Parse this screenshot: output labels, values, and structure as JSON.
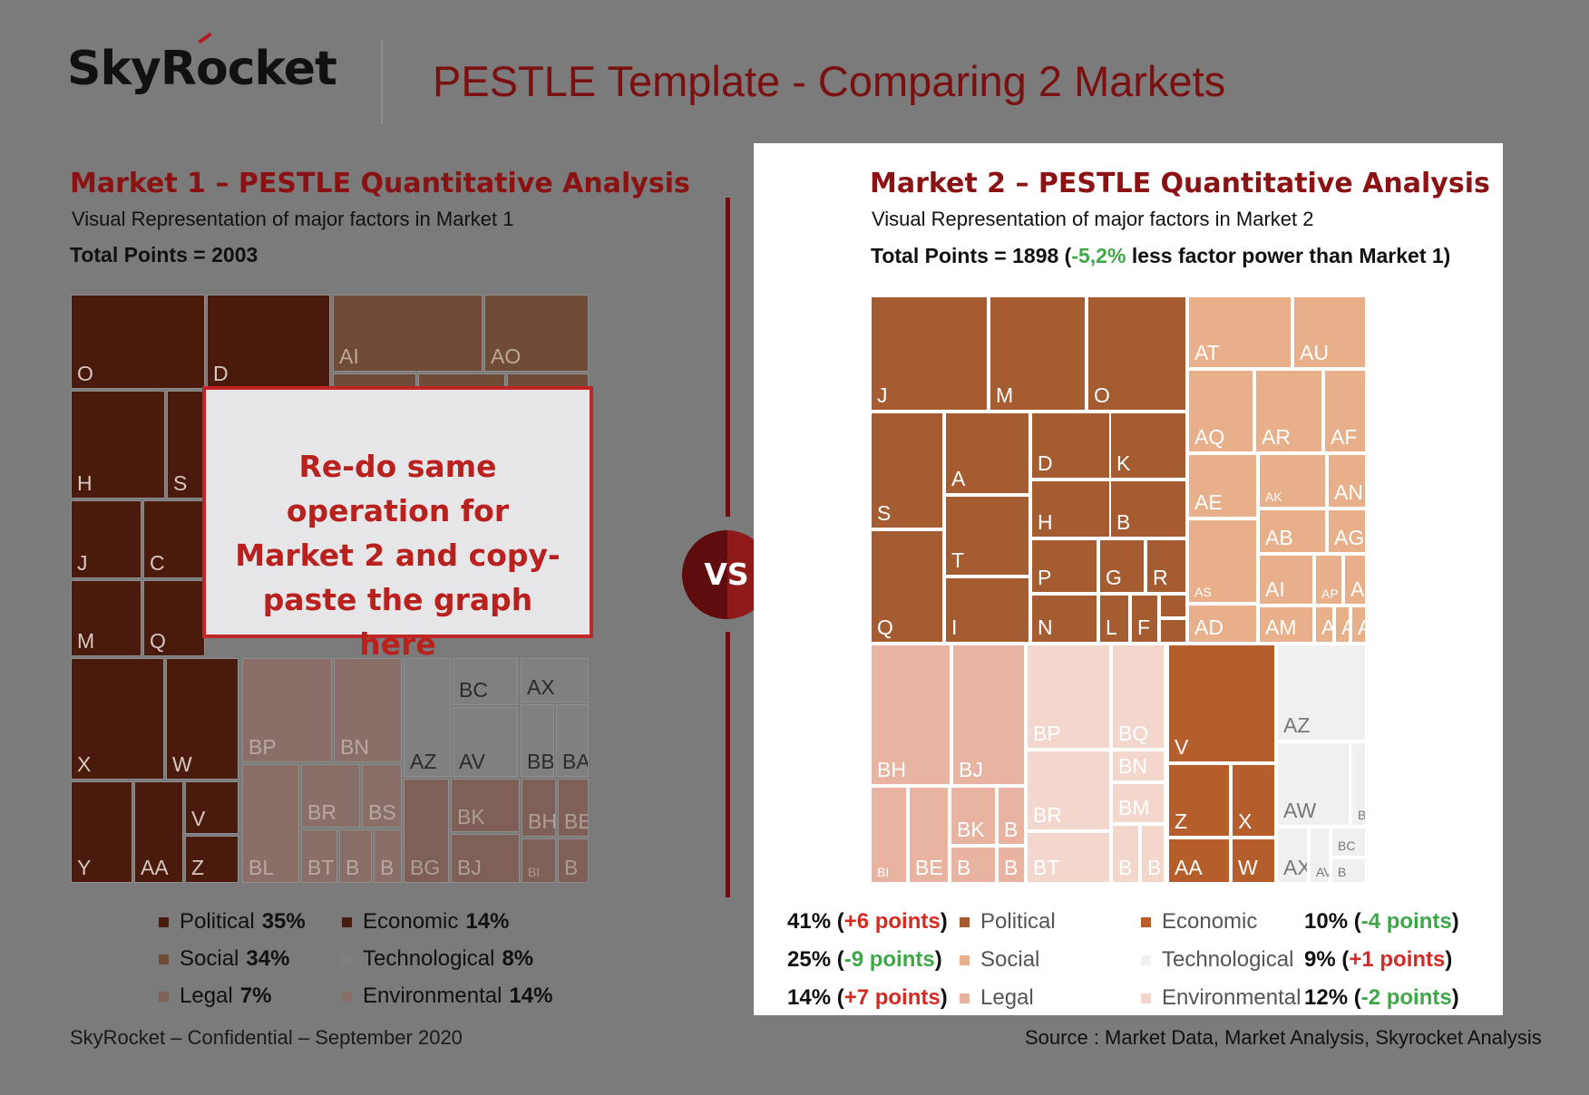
{
  "header": {
    "logo_text": "SkyRocket",
    "title": "PESTLE Template - Comparing 2 Markets"
  },
  "market1": {
    "heading": "Market 1 – PESTLE Quantitative Analysis",
    "subtitle": "Visual Representation of major factors in Market 1",
    "total": "Total Points = 2003"
  },
  "market2": {
    "heading": "Market 2 – PESTLE Quantitative Analysis",
    "subtitle": "Visual Representation of major factors in Market 2",
    "total_prefix": "Total Points = 1898 (",
    "total_delta": "-5,2%",
    "total_suffix": " less factor power than Market 1)"
  },
  "callout": {
    "text": "Re-do same operation for Market 2 and copy-paste the graph here"
  },
  "vs_label": "VS",
  "footer": {
    "left": "SkyRocket – Confidential – September 2020",
    "right": "Source : Market Data, Market Analysis, Skyrocket Analysis"
  },
  "colors": {
    "background": "#7b7b7b",
    "accent": "#8a1212",
    "m1": {
      "Political": "#4a1a0c",
      "Economic": "#4a1a0c",
      "Social": "#704b37",
      "Legal": "#7f6058",
      "Technological": "#808080",
      "Environmental": "#8a6e68"
    },
    "m2": {
      "Political": "#a55c30",
      "Economic": "#b65e2b",
      "Social": "#e8b08a",
      "Legal": "#e8b3a1",
      "Technological": "#f0f0f0",
      "Environmental": "#f3d7cd"
    }
  },
  "chart_data": [
    {
      "type": "treemap",
      "title": "Market 1 – PESTLE Quantitative Analysis",
      "total_points": 2003,
      "categories": [
        {
          "name": "Political",
          "share": 35,
          "items": [
            "O",
            "D",
            "H",
            "S",
            "J",
            "C",
            "M",
            "Q",
            "X",
            "W",
            "Y",
            "AA",
            "V",
            "Z"
          ]
        },
        {
          "name": "Economic",
          "share": 14,
          "items": []
        },
        {
          "name": "Social",
          "share": 34,
          "items": [
            "AI",
            "AO"
          ]
        },
        {
          "name": "Technological",
          "share": 8,
          "items": [
            "AZ",
            "AV",
            "BC",
            "AX",
            "BB",
            "BA"
          ]
        },
        {
          "name": "Legal",
          "share": 7,
          "items": [
            "BG",
            "BK",
            "BJ",
            "BH",
            "BE",
            "BI",
            "B"
          ]
        },
        {
          "name": "Environmental",
          "share": 14,
          "items": [
            "BP",
            "BN",
            "BL",
            "BR",
            "BS",
            "BT",
            "B",
            "B"
          ]
        }
      ],
      "legend": [
        {
          "name": "Political",
          "label": "35%"
        },
        {
          "name": "Economic",
          "label": "14%"
        },
        {
          "name": "Social",
          "label": "34%"
        },
        {
          "name": "Technological",
          "label": "8%"
        },
        {
          "name": "Legal",
          "label": "7%"
        },
        {
          "name": "Environmental",
          "label": "14%"
        }
      ]
    },
    {
      "type": "treemap",
      "title": "Market 2 – PESTLE Quantitative Analysis",
      "total_points": 1898,
      "categories": [
        {
          "name": "Political",
          "share": 41,
          "delta": "+6 points",
          "items": [
            "J",
            "M",
            "O",
            "S",
            "A",
            "D",
            "K",
            "H",
            "B",
            "T",
            "P",
            "G",
            "R",
            "Q",
            "I",
            "N",
            "L",
            "F"
          ]
        },
        {
          "name": "Economic",
          "share": 10,
          "delta": "-4 points",
          "items": [
            "V",
            "Z",
            "X",
            "AA",
            "W"
          ]
        },
        {
          "name": "Social",
          "share": 25,
          "delta": "-9 points",
          "items": [
            "AT",
            "AU",
            "AQ",
            "AR",
            "AF",
            "AE",
            "AK",
            "AN",
            "AB",
            "AG",
            "AS",
            "AI",
            "AP",
            "A",
            "AD",
            "AM",
            "A",
            "A",
            "A"
          ]
        },
        {
          "name": "Technological",
          "share": 9,
          "delta": "+1 points",
          "items": [
            "AZ",
            "AW",
            "BA",
            "AX",
            "AV",
            "BC",
            "B"
          ]
        },
        {
          "name": "Legal",
          "share": 14,
          "delta": "+7 points",
          "items": [
            "BH",
            "BJ",
            "BK",
            "B",
            "BI",
            "BE",
            "B",
            "B"
          ]
        },
        {
          "name": "Environmental",
          "share": 12,
          "delta": "-2 points",
          "items": [
            "BP",
            "BQ",
            "BN",
            "BR",
            "BM",
            "BT",
            "B",
            "B"
          ]
        }
      ],
      "legend": [
        {
          "name": "Political",
          "pct": "41% (",
          "delta": "+6 points",
          "end": ")"
        },
        {
          "name": "Economic",
          "pct": "10% (",
          "delta": "-4 points",
          "end": ")"
        },
        {
          "name": "Social",
          "pct": "25% (",
          "delta": "-9 points",
          "end": ")"
        },
        {
          "name": "Technological",
          "pct": "9% (",
          "delta": "+1 points",
          "end": ")"
        },
        {
          "name": "Legal",
          "pct": "14% (",
          "delta": "+7 points",
          "end": ")"
        },
        {
          "name": "Environmental",
          "pct": "12% (",
          "delta": "-2 points",
          "end": ")"
        }
      ]
    }
  ]
}
